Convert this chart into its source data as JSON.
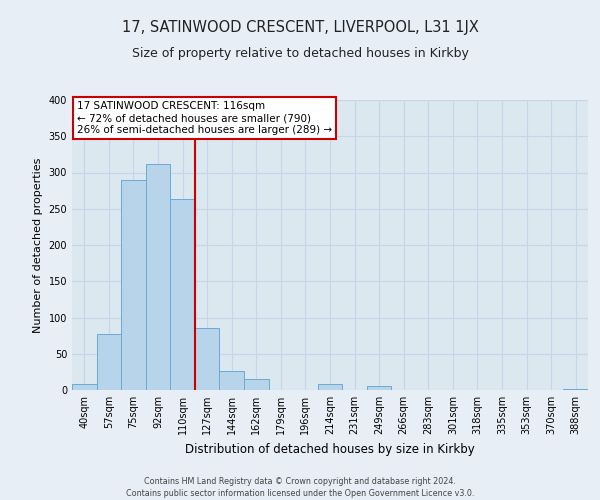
{
  "title": "17, SATINWOOD CRESCENT, LIVERPOOL, L31 1JX",
  "subtitle": "Size of property relative to detached houses in Kirkby",
  "xlabel": "Distribution of detached houses by size in Kirkby",
  "ylabel": "Number of detached properties",
  "bar_labels": [
    "40sqm",
    "57sqm",
    "75sqm",
    "92sqm",
    "110sqm",
    "127sqm",
    "144sqm",
    "162sqm",
    "179sqm",
    "196sqm",
    "214sqm",
    "231sqm",
    "249sqm",
    "266sqm",
    "283sqm",
    "301sqm",
    "318sqm",
    "335sqm",
    "353sqm",
    "370sqm",
    "388sqm"
  ],
  "bar_values": [
    8,
    77,
    290,
    312,
    263,
    85,
    26,
    15,
    0,
    0,
    8,
    0,
    5,
    0,
    0,
    0,
    0,
    0,
    0,
    0,
    2
  ],
  "bar_color": "#b8d4ea",
  "bar_edge_color": "#6aaad4",
  "annotation_line1": "17 SATINWOOD CRESCENT: 116sqm",
  "annotation_line2": "← 72% of detached houses are smaller (790)",
  "annotation_line3": "26% of semi-detached houses are larger (289) →",
  "annotation_box_color": "#ffffff",
  "annotation_box_edge": "#cc0000",
  "red_line_index": 4,
  "ylim": [
    0,
    400
  ],
  "yticks": [
    0,
    50,
    100,
    150,
    200,
    250,
    300,
    350,
    400
  ],
  "grid_color": "#c8d4e8",
  "background_color": "#dce8f0",
  "fig_background": "#e8eef6",
  "footer1": "Contains HM Land Registry data © Crown copyright and database right 2024.",
  "footer2": "Contains public sector information licensed under the Open Government Licence v3.0."
}
